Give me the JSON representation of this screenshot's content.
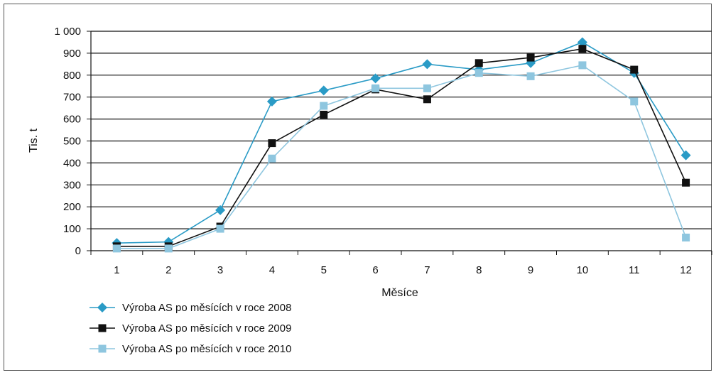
{
  "chart_data": {
    "type": "line",
    "title": "",
    "xlabel": "Měsíce",
    "ylabel": "Tis. t",
    "categories": [
      "1",
      "2",
      "3",
      "4",
      "5",
      "6",
      "7",
      "8",
      "9",
      "10",
      "11",
      "12"
    ],
    "y_ticks": [
      "0",
      "100",
      "200",
      "300",
      "400",
      "500",
      "600",
      "700",
      "800",
      "900",
      "1 000"
    ],
    "ylim": [
      0,
      1000
    ],
    "grid": "horizontal",
    "legend_position": "bottom-left",
    "series": [
      {
        "name": "Výroba AS po měsících v roce 2008",
        "marker": "diamond",
        "color": "#2a9bc6",
        "values": [
          35,
          40,
          185,
          680,
          730,
          785,
          850,
          825,
          855,
          950,
          810,
          435
        ]
      },
      {
        "name": "Výroba AS po měsících v roce 2009",
        "marker": "square",
        "color": "#111111",
        "values": [
          20,
          20,
          110,
          490,
          620,
          735,
          690,
          855,
          880,
          920,
          825,
          310
        ]
      },
      {
        "name": "Výroba AS po měsících v roce 2010",
        "marker": "square",
        "color": "#8ec6df",
        "values": [
          10,
          10,
          100,
          420,
          660,
          740,
          740,
          810,
          795,
          845,
          680,
          60
        ]
      }
    ]
  }
}
